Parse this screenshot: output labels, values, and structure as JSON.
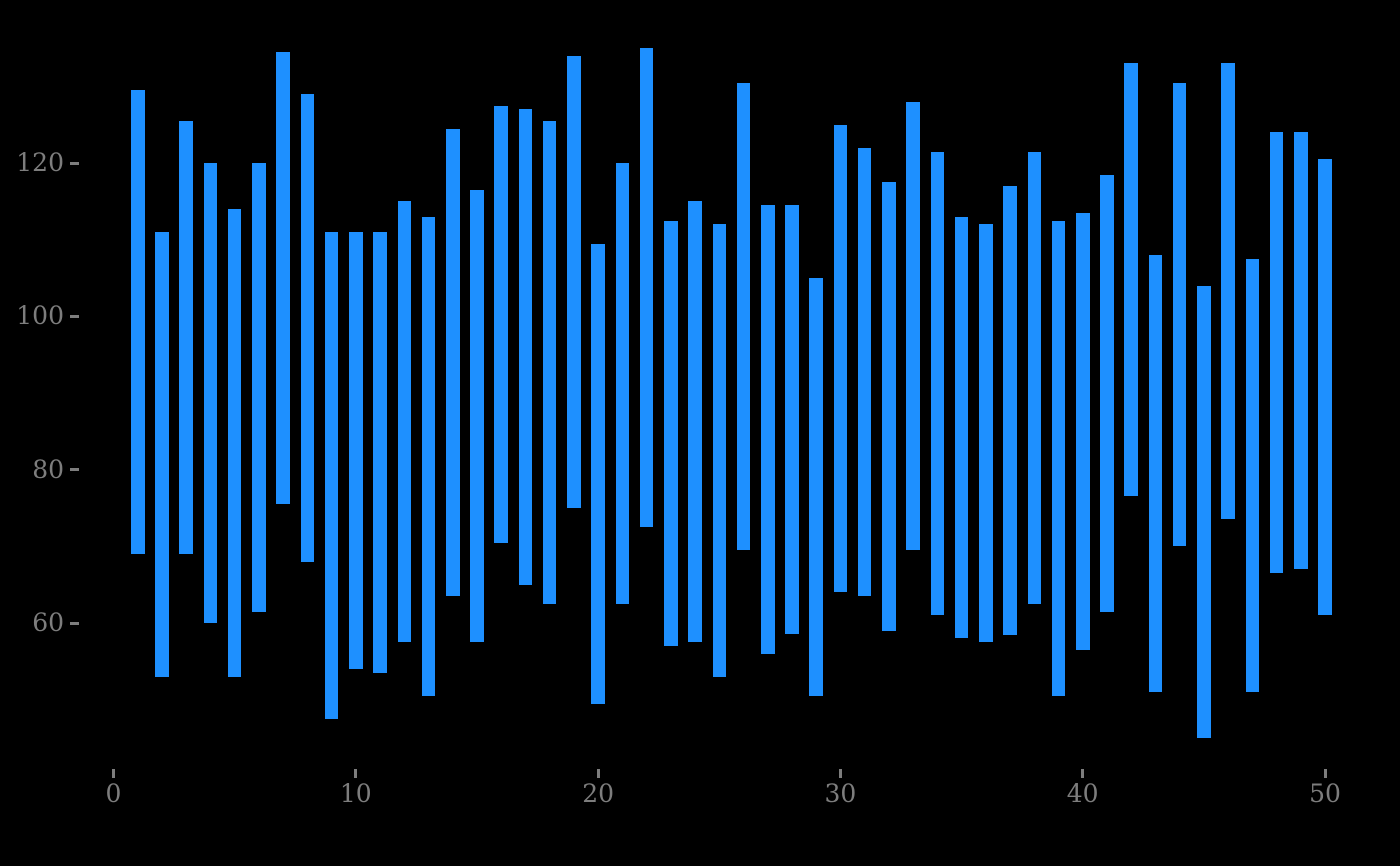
{
  "chart_data": {
    "type": "bar",
    "subtype": "floating-range-bar",
    "title": "",
    "xlabel": "",
    "ylabel": "",
    "x": [
      1,
      2,
      3,
      4,
      5,
      6,
      7,
      8,
      9,
      10,
      11,
      12,
      13,
      14,
      15,
      16,
      17,
      18,
      19,
      20,
      21,
      22,
      23,
      24,
      25,
      26,
      27,
      28,
      29,
      30,
      31,
      32,
      33,
      34,
      35,
      36,
      37,
      38,
      39,
      40,
      41,
      42,
      43,
      44,
      45,
      46,
      47,
      48,
      49,
      50
    ],
    "bars_low_high": [
      [
        69,
        129.5
      ],
      [
        53,
        111
      ],
      [
        69,
        125.5
      ],
      [
        60,
        120
      ],
      [
        53,
        114
      ],
      [
        61.5,
        120
      ],
      [
        75.5,
        134.5
      ],
      [
        68,
        129
      ],
      [
        47.5,
        111
      ],
      [
        54,
        111
      ],
      [
        53.5,
        111
      ],
      [
        57.5,
        115
      ],
      [
        50.5,
        113
      ],
      [
        63.5,
        124.5
      ],
      [
        57.5,
        116.5
      ],
      [
        70.5,
        127.5
      ],
      [
        65,
        127
      ],
      [
        62.5,
        125.5
      ],
      [
        75,
        134
      ],
      [
        49.5,
        109.5
      ],
      [
        62.5,
        120
      ],
      [
        72.5,
        135
      ],
      [
        57,
        112.5
      ],
      [
        57.5,
        115
      ],
      [
        53,
        112
      ],
      [
        69.5,
        130.5
      ],
      [
        56,
        114.5
      ],
      [
        58.5,
        114.5
      ],
      [
        50.5,
        105
      ],
      [
        64,
        125
      ],
      [
        63.5,
        122
      ],
      [
        59,
        117.5
      ],
      [
        69.5,
        128
      ],
      [
        61,
        121.5
      ],
      [
        58,
        113
      ],
      [
        57.5,
        112
      ],
      [
        58.5,
        117
      ],
      [
        62.5,
        121.5
      ],
      [
        50.5,
        112.5
      ],
      [
        56.5,
        113.5
      ],
      [
        61.5,
        118.5
      ],
      [
        76.5,
        133
      ],
      [
        51,
        108
      ],
      [
        70,
        130.5
      ],
      [
        45,
        104
      ],
      [
        73.5,
        133
      ],
      [
        51,
        107.5
      ],
      [
        66.5,
        124
      ],
      [
        67,
        124
      ],
      [
        61,
        120.5
      ]
    ],
    "xticks": [
      "0",
      "10",
      "20",
      "30",
      "40",
      "50"
    ],
    "xtick_values": [
      0,
      10,
      20,
      30,
      40,
      50
    ],
    "yticks": [
      "60",
      "80",
      "100",
      "120"
    ],
    "ytick_values": [
      60,
      80,
      100,
      120
    ],
    "xlim": [
      -1.5,
      52.5
    ],
    "ylim": [
      41,
      141
    ],
    "grid": false,
    "legend": null,
    "colors": {
      "background": "#000000",
      "bar": "#1e90ff",
      "tick_label": "#7d7d7d",
      "tick_mark": "#7d7d7d"
    }
  }
}
